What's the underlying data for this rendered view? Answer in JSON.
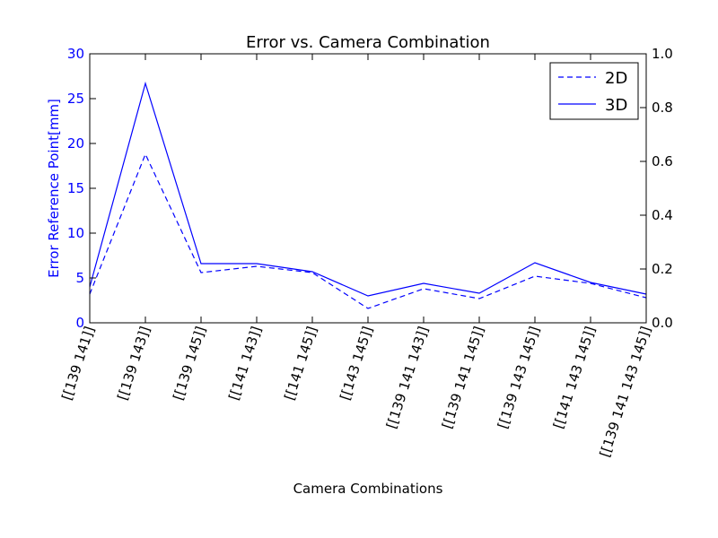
{
  "chart_data": {
    "type": "line",
    "title": "Error vs. Camera Combination",
    "xlabel": "Camera Combinations",
    "ylabel": "Error Reference Point[mm]",
    "categories": [
      "[[139 141]]",
      "[[139 143]]",
      "[[139 145]]",
      "[[141 143]]",
      "[[141 145]]",
      "[[143 145]]",
      "[[139 141 143]]",
      "[[139 141 145]]",
      "[[139 143 145]]",
      "[[141 143 145]]",
      "[[139 141 143 145]]"
    ],
    "series": [
      {
        "name": "2D",
        "style": "dashed",
        "color": "#0000ff",
        "values": [
          3.2,
          18.8,
          5.6,
          6.3,
          5.6,
          1.6,
          3.8,
          2.7,
          5.2,
          4.4,
          2.8
        ]
      },
      {
        "name": "3D",
        "style": "solid",
        "color": "#0000ff",
        "values": [
          4.0,
          26.7,
          6.6,
          6.6,
          5.7,
          3.0,
          4.4,
          3.3,
          6.7,
          4.5,
          3.2
        ]
      }
    ],
    "ylim": [
      0,
      30
    ],
    "yticks": [
      "0",
      "5",
      "10",
      "15",
      "20",
      "25",
      "30"
    ],
    "y2lim": [
      0,
      1
    ],
    "y2ticks": [
      "0.0",
      "0.2",
      "0.4",
      "0.6",
      "0.8",
      "1.0"
    ],
    "legend_position": "top-right",
    "grid": false,
    "left_axis_color": "#0000ff",
    "text_color": "#000000"
  }
}
